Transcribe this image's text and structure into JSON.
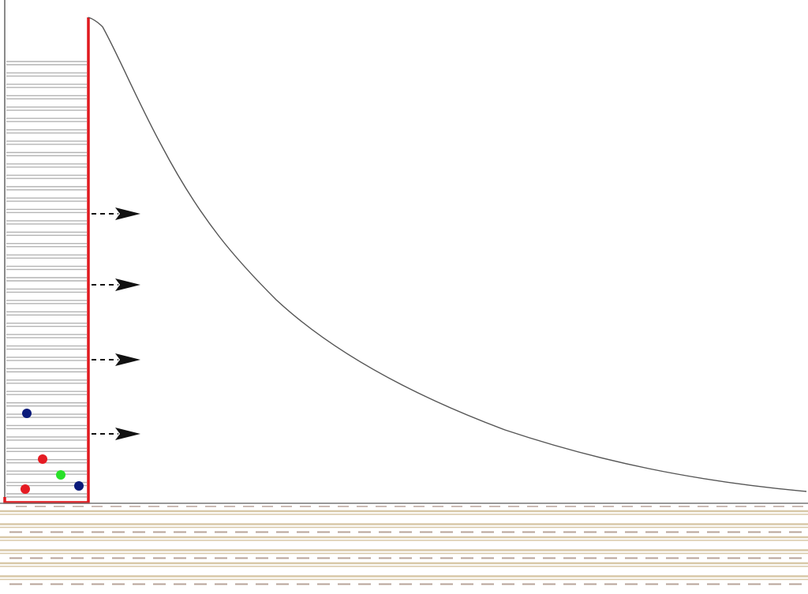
{
  "diagram": {
    "type": "concentration-decay-with-diffusion-arrows",
    "colors": {
      "background": "#ffffff",
      "barrier": "#e0191f",
      "curve": "#555555",
      "layers": "#b4b4b4",
      "ground_band": "#d8c8a8",
      "ground_dash": "#b8a49a",
      "arrow": "#111111",
      "particle_blue": "#0a1a7a",
      "particle_red": "#e51b23",
      "particle_green": "#28e028"
    },
    "source_layers": 39,
    "arrows": 4,
    "particles": [
      {
        "color": "blue"
      },
      {
        "color": "red"
      },
      {
        "color": "green"
      },
      {
        "color": "blue"
      },
      {
        "color": "red"
      }
    ],
    "ground_rows": 6
  }
}
